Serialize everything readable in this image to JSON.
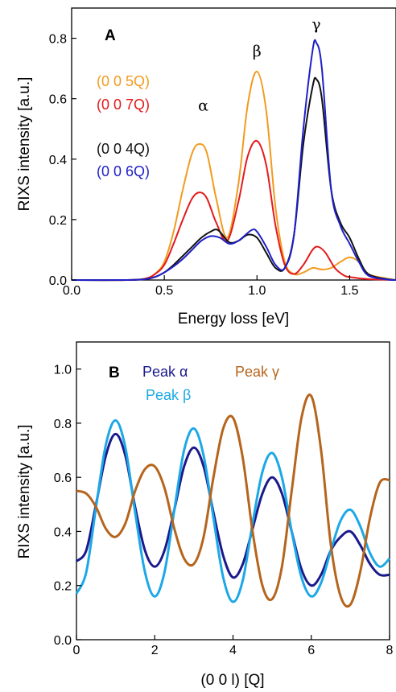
{
  "chart_data": [
    {
      "type": "line",
      "panel": "A",
      "xlabel": "Energy loss [eV]",
      "ylabel": "RIXS intensity [a.u.]",
      "xlim": [
        0.0,
        1.75
      ],
      "ylim": [
        0.0,
        0.9
      ],
      "xticks": [
        0.0,
        0.5,
        1.0,
        1.5
      ],
      "xtick_labels": [
        "0.0",
        "0.5",
        "1.0",
        "1.5"
      ],
      "yticks": [
        0.0,
        0.2,
        0.4,
        0.6,
        0.8
      ],
      "ytick_labels": [
        "0.0",
        "0.2",
        "0.4",
        "0.6",
        "0.8"
      ],
      "grid": false,
      "legend_position": "top-left",
      "peak_labels": [
        {
          "text": "α",
          "x": 0.71,
          "y": 0.56
        },
        {
          "text": "β",
          "x": 1.0,
          "y": 0.74
        },
        {
          "text": "γ",
          "x": 1.32,
          "y": 0.83
        }
      ],
      "series": [
        {
          "name": "(0 0 5Q)",
          "color": "#f39a1f",
          "x": [
            0.0,
            0.3,
            0.4,
            0.45,
            0.5,
            0.55,
            0.6,
            0.65,
            0.69,
            0.73,
            0.78,
            0.84,
            0.9,
            0.95,
            1.0,
            1.05,
            1.1,
            1.15,
            1.2,
            1.25,
            1.3,
            1.35,
            1.4,
            1.45,
            1.5,
            1.55,
            1.6,
            1.7,
            1.75
          ],
          "y": [
            0.0,
            0.0,
            0.005,
            0.02,
            0.06,
            0.16,
            0.3,
            0.42,
            0.45,
            0.42,
            0.27,
            0.14,
            0.32,
            0.58,
            0.69,
            0.56,
            0.24,
            0.06,
            0.02,
            0.025,
            0.04,
            0.035,
            0.04,
            0.06,
            0.075,
            0.06,
            0.02,
            0.005,
            0.0
          ]
        },
        {
          "name": "(0 0 7Q)",
          "color": "#e31a1c",
          "x": [
            0.0,
            0.3,
            0.4,
            0.45,
            0.5,
            0.55,
            0.6,
            0.65,
            0.69,
            0.73,
            0.78,
            0.84,
            0.9,
            0.95,
            1.0,
            1.05,
            1.1,
            1.15,
            1.2,
            1.25,
            1.3,
            1.33,
            1.37,
            1.42,
            1.47,
            1.5,
            1.6,
            1.75
          ],
          "y": [
            0.0,
            0.0,
            0.005,
            0.02,
            0.05,
            0.12,
            0.2,
            0.27,
            0.29,
            0.27,
            0.19,
            0.13,
            0.26,
            0.41,
            0.46,
            0.38,
            0.18,
            0.05,
            0.02,
            0.05,
            0.1,
            0.11,
            0.09,
            0.04,
            0.015,
            0.01,
            0.003,
            0.0
          ]
        },
        {
          "name": "(0 0 4Q)",
          "color": "#111111",
          "x": [
            0.0,
            0.3,
            0.4,
            0.45,
            0.5,
            0.55,
            0.6,
            0.65,
            0.7,
            0.75,
            0.79,
            0.85,
            0.9,
            0.95,
            1.0,
            1.05,
            1.1,
            1.15,
            1.2,
            1.25,
            1.3,
            1.32,
            1.35,
            1.4,
            1.45,
            1.5,
            1.55,
            1.6,
            1.7,
            1.75
          ],
          "y": [
            0.0,
            0.0,
            0.003,
            0.01,
            0.025,
            0.05,
            0.08,
            0.11,
            0.14,
            0.16,
            0.165,
            0.125,
            0.13,
            0.15,
            0.14,
            0.09,
            0.04,
            0.04,
            0.15,
            0.45,
            0.64,
            0.665,
            0.6,
            0.3,
            0.19,
            0.14,
            0.07,
            0.02,
            0.003,
            0.0
          ]
        },
        {
          "name": "(0 0 6Q)",
          "color": "#1f1fc8",
          "x": [
            0.0,
            0.3,
            0.4,
            0.45,
            0.5,
            0.55,
            0.6,
            0.65,
            0.7,
            0.75,
            0.8,
            0.85,
            0.9,
            0.97,
            1.0,
            1.05,
            1.1,
            1.15,
            1.2,
            1.25,
            1.3,
            1.32,
            1.35,
            1.4,
            1.45,
            1.5,
            1.55,
            1.6,
            1.7,
            1.75
          ],
          "y": [
            0.0,
            0.0,
            0.003,
            0.01,
            0.025,
            0.045,
            0.07,
            0.1,
            0.13,
            0.145,
            0.14,
            0.12,
            0.13,
            0.165,
            0.16,
            0.11,
            0.05,
            0.04,
            0.15,
            0.5,
            0.76,
            0.785,
            0.7,
            0.3,
            0.18,
            0.12,
            0.06,
            0.015,
            0.002,
            0.0
          ]
        }
      ]
    },
    {
      "type": "line",
      "panel": "B",
      "xlabel": "(0 0 l) [Q]",
      "ylabel": "RIXS intensity [a.u.]",
      "xlim": [
        0,
        8
      ],
      "ylim": [
        0.0,
        1.1
      ],
      "xticks": [
        0,
        2,
        4,
        6,
        8
      ],
      "xtick_labels": [
        "0",
        "2",
        "4",
        "6",
        "8"
      ],
      "yticks": [
        0.0,
        0.2,
        0.4,
        0.6,
        0.8,
        1.0
      ],
      "ytick_labels": [
        "0.0",
        "0.2",
        "0.4",
        "0.6",
        "0.8",
        "1.0"
      ],
      "grid": false,
      "legend_position": "top-left",
      "series": [
        {
          "name": "Peak α",
          "color": "#1a1a8c",
          "x": [
            0.0,
            0.25,
            0.5,
            0.75,
            1.0,
            1.25,
            1.5,
            1.75,
            2.0,
            2.25,
            2.5,
            2.75,
            3.0,
            3.25,
            3.5,
            3.75,
            4.0,
            4.25,
            4.5,
            4.75,
            5.0,
            5.25,
            5.5,
            5.75,
            6.0,
            6.25,
            6.5,
            6.75,
            7.0,
            7.25,
            7.5,
            7.75,
            8.0
          ],
          "y": [
            0.29,
            0.33,
            0.5,
            0.68,
            0.76,
            0.68,
            0.49,
            0.33,
            0.27,
            0.33,
            0.48,
            0.64,
            0.71,
            0.64,
            0.47,
            0.31,
            0.23,
            0.28,
            0.41,
            0.54,
            0.6,
            0.54,
            0.4,
            0.26,
            0.2,
            0.24,
            0.33,
            0.38,
            0.4,
            0.35,
            0.28,
            0.24,
            0.24
          ]
        },
        {
          "name": "Peak β",
          "color": "#1ca8e6",
          "x": [
            0.0,
            0.25,
            0.5,
            0.75,
            1.0,
            1.25,
            1.5,
            1.75,
            2.0,
            2.25,
            2.5,
            2.75,
            3.0,
            3.25,
            3.5,
            3.75,
            4.0,
            4.25,
            4.5,
            4.75,
            5.0,
            5.25,
            5.5,
            5.75,
            6.0,
            6.25,
            6.5,
            6.75,
            7.0,
            7.25,
            7.5,
            7.75,
            8.0
          ],
          "y": [
            0.17,
            0.25,
            0.49,
            0.72,
            0.81,
            0.71,
            0.47,
            0.25,
            0.16,
            0.25,
            0.48,
            0.7,
            0.78,
            0.68,
            0.45,
            0.23,
            0.14,
            0.22,
            0.43,
            0.62,
            0.69,
            0.6,
            0.4,
            0.23,
            0.16,
            0.21,
            0.33,
            0.44,
            0.48,
            0.42,
            0.32,
            0.27,
            0.3
          ]
        },
        {
          "name": "Peak γ",
          "color": "#b5651d",
          "x": [
            0.0,
            0.25,
            0.5,
            0.75,
            1.0,
            1.25,
            1.5,
            1.75,
            2.0,
            2.25,
            2.5,
            2.75,
            3.0,
            3.25,
            3.5,
            3.75,
            4.0,
            4.25,
            4.5,
            4.75,
            5.0,
            5.25,
            5.5,
            5.75,
            6.0,
            6.25,
            6.5,
            6.75,
            7.0,
            7.25,
            7.5,
            7.75,
            8.0
          ],
          "y": [
            0.55,
            0.54,
            0.49,
            0.41,
            0.38,
            0.43,
            0.55,
            0.63,
            0.64,
            0.56,
            0.41,
            0.3,
            0.28,
            0.38,
            0.6,
            0.78,
            0.82,
            0.67,
            0.4,
            0.2,
            0.15,
            0.27,
            0.55,
            0.82,
            0.9,
            0.7,
            0.35,
            0.16,
            0.13,
            0.25,
            0.45,
            0.58,
            0.59
          ]
        }
      ]
    }
  ]
}
